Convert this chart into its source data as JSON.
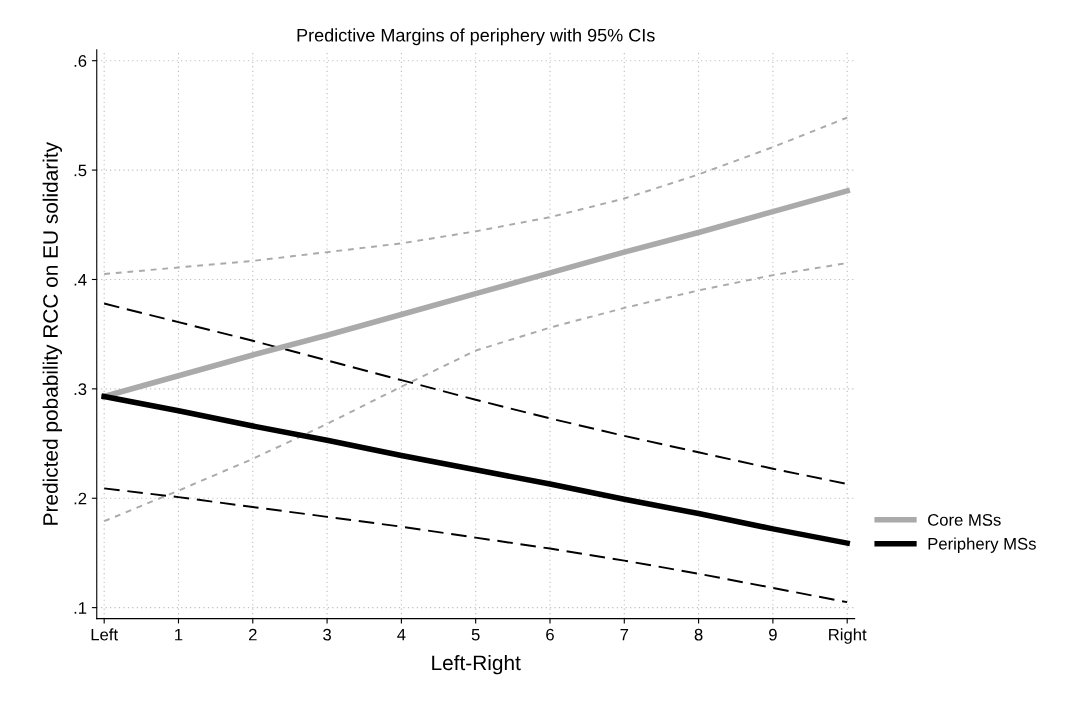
{
  "chart_data": {
    "type": "line",
    "title": "Predictive Margins of periphery with 95% CIs",
    "xlabel": "Left-Right",
    "ylabel": "Predicted pobability RCC on EU solidarity",
    "x": [
      0,
      1,
      2,
      3,
      4,
      5,
      6,
      7,
      8,
      9,
      10
    ],
    "series": [
      {
        "color": "#aaaaaa",
        "line_style": "dotted",
        "values": [
          0.405,
          0.411,
          0.417,
          0.425,
          0.433,
          0.444,
          0.457,
          0.474,
          0.496,
          0.521,
          0.548
        ]
      },
      {
        "color": "#aaaaaa",
        "line_style": "dotted",
        "values": [
          0.179,
          0.207,
          0.236,
          0.268,
          0.302,
          0.335,
          0.356,
          0.374,
          0.39,
          0.404,
          0.415
        ]
      },
      {
        "color": "#000000",
        "line_style": "dashed",
        "values": [
          0.378,
          0.361,
          0.344,
          0.326,
          0.308,
          0.29,
          0.273,
          0.257,
          0.242,
          0.227,
          0.213
        ]
      },
      {
        "color": "#000000",
        "line_style": "dashed",
        "values": [
          0.209,
          0.201,
          0.192,
          0.183,
          0.174,
          0.164,
          0.154,
          0.143,
          0.131,
          0.118,
          0.105
        ]
      },
      {
        "name": "Core MSs",
        "color": "#aaaaaa",
        "line_style": "solid",
        "values": [
          0.293,
          0.312,
          0.331,
          0.349,
          0.368,
          0.387,
          0.406,
          0.425,
          0.443,
          0.462,
          0.481
        ]
      },
      {
        "name": "Periphery MSs",
        "color": "#000000",
        "line_style": "solid",
        "values": [
          0.293,
          0.28,
          0.266,
          0.253,
          0.239,
          0.226,
          0.213,
          0.199,
          0.186,
          0.172,
          0.159
        ]
      }
    ],
    "xlim": [
      -0.1,
      10.1
    ],
    "xticks": [
      {
        "value": 0,
        "label": "Left"
      },
      1,
      2,
      3,
      4,
      5,
      6,
      7,
      8,
      9,
      {
        "value": 10,
        "label": "Right"
      }
    ],
    "ylim": [
      0.09,
      0.61
    ],
    "yticks": [
      {
        "value": 0.1,
        "label": ".1"
      },
      {
        "value": 0.2,
        "label": ".2"
      },
      {
        "value": 0.3,
        "label": ".3"
      },
      {
        "value": 0.4,
        "label": ".4"
      },
      {
        "value": 0.5,
        "label": ".5"
      },
      {
        "value": 0.6,
        "label": ".6"
      }
    ],
    "grid": true,
    "legend": "right"
  }
}
